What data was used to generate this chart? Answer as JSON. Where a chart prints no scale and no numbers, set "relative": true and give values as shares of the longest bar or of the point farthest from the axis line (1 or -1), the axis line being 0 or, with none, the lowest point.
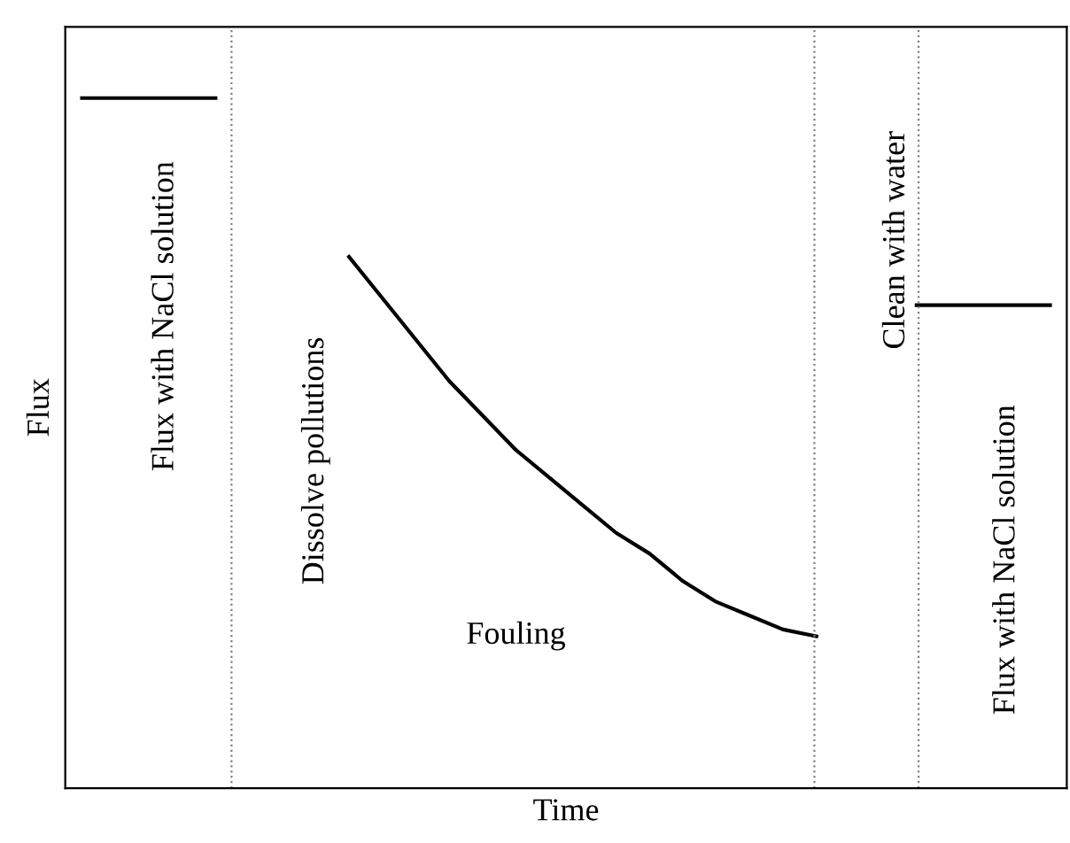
{
  "chart_data": {
    "type": "line",
    "relative": true,
    "xlabel": "Time",
    "ylabel": "Flux",
    "tick_labels": false,
    "marker": "none",
    "line_style": "solid",
    "categories": [
      null,
      null,
      null,
      null,
      null,
      null,
      null,
      null,
      null,
      null,
      null,
      null,
      null,
      null,
      null,
      null,
      null,
      null,
      null,
      null,
      null,
      null,
      null,
      null,
      null,
      null,
      null,
      null,
      null,
      null
    ],
    "series": [
      {
        "color": "#000000",
        "values": [
          1,
          1,
          1,
          1,
          1,
          null,
          null,
          null,
          null,
          null,
          null,
          null,
          null,
          null,
          null,
          null,
          null,
          null,
          null,
          null,
          null,
          null,
          null,
          null,
          null,
          null,
          null,
          null,
          null,
          null
        ]
      },
      {
        "color": "#000000",
        "values": [
          null,
          null,
          null,
          null,
          null,
          null,
          null,
          null,
          0.77,
          0.71,
          0.65,
          0.59,
          0.54,
          0.49,
          0.45,
          0.41,
          0.37,
          0.34,
          0.3,
          0.27,
          0.25,
          0.23,
          0.22,
          null,
          null,
          null,
          null,
          null,
          null,
          null
        ]
      },
      {
        "color": "#000000",
        "values": [
          null,
          null,
          null,
          null,
          null,
          null,
          null,
          null,
          null,
          null,
          null,
          null,
          null,
          null,
          null,
          null,
          null,
          null,
          null,
          null,
          null,
          null,
          null,
          null,
          null,
          0.7,
          0.7,
          0.7,
          0.7,
          0.7
        ]
      }
    ],
    "annotations": [
      "Flux with NaCl solution",
      "Dissolve pollutions",
      "Fouling",
      "Clean with water",
      "Flux with NaCl solution"
    ]
  }
}
